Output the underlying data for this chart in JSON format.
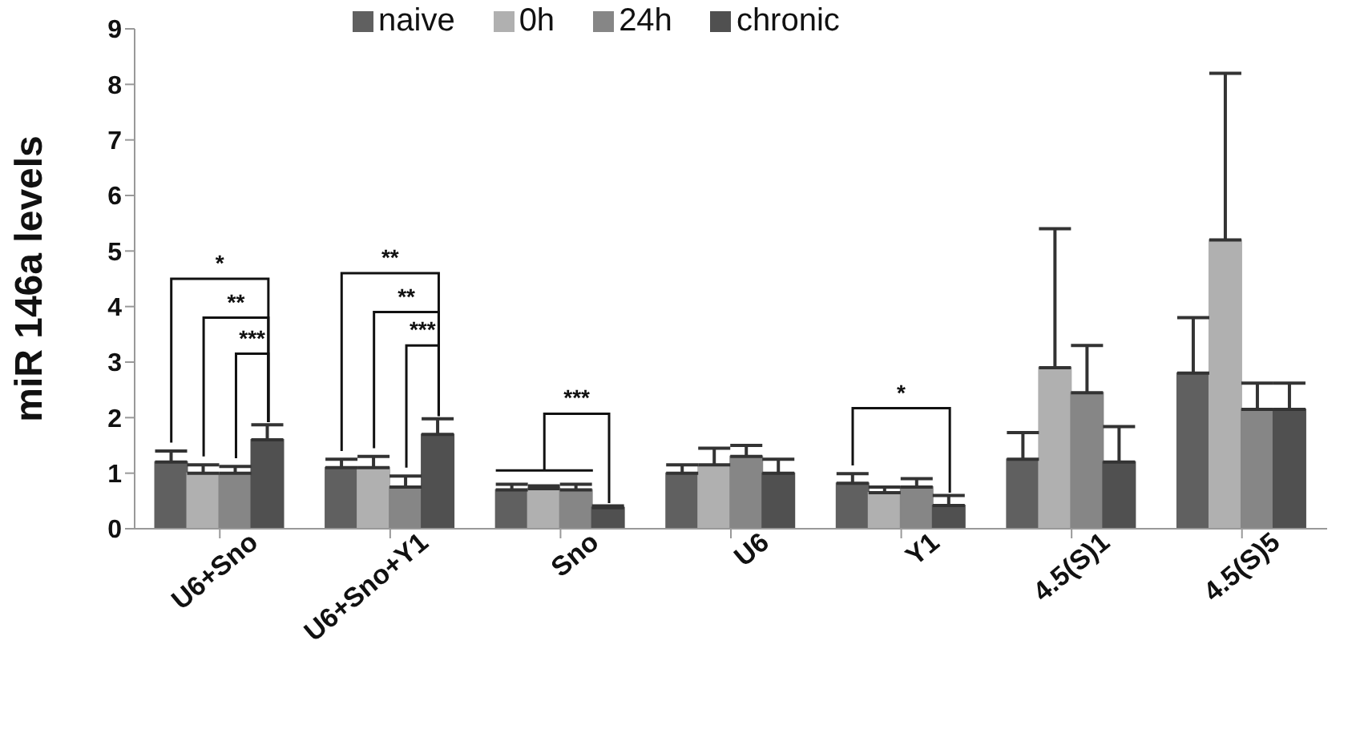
{
  "chart_data": {
    "type": "bar",
    "ylabel": "miR 146a levels",
    "categories": [
      "U6+Sno",
      "U6+Sno+Y1",
      "Sno",
      "U6",
      "Y1",
      "4.5(S)1",
      "4.5(S)5"
    ],
    "series": [
      {
        "name": "naive",
        "color": "#606060",
        "values": [
          1.2,
          1.1,
          0.7,
          1.0,
          0.82,
          1.25,
          2.8
        ],
        "errors": [
          [
            1.2,
            1.4
          ],
          [
            1.1,
            1.25
          ],
          [
            0.7,
            0.8
          ],
          [
            1.0,
            1.15
          ],
          [
            0.82,
            0.99
          ],
          [
            1.25,
            1.73
          ],
          [
            2.8,
            3.8
          ]
        ]
      },
      {
        "name": "0h",
        "color": "#b0b0b0",
        "values": [
          1.0,
          1.1,
          0.72,
          1.15,
          0.65,
          2.9,
          5.2
        ],
        "errors": [
          [
            1.0,
            1.15
          ],
          [
            1.1,
            1.3
          ],
          [
            0.72,
            0.77
          ],
          [
            1.15,
            1.45
          ],
          [
            0.65,
            0.75
          ],
          [
            2.9,
            5.4
          ],
          [
            5.2,
            8.2
          ]
        ]
      },
      {
        "name": "24h",
        "color": "#868686",
        "values": [
          1.0,
          0.75,
          0.7,
          1.3,
          0.75,
          2.45,
          2.15
        ],
        "errors": [
          [
            1.0,
            1.12
          ],
          [
            0.75,
            0.95
          ],
          [
            0.7,
            0.8
          ],
          [
            1.3,
            1.5
          ],
          [
            0.75,
            0.9
          ],
          [
            2.45,
            3.3
          ],
          [
            2.15,
            2.62
          ]
        ]
      },
      {
        "name": "chronic",
        "color": "#505050",
        "values": [
          1.6,
          1.7,
          0.38,
          1.0,
          0.42,
          1.2,
          2.15
        ],
        "errors": [
          [
            1.6,
            1.87
          ],
          [
            1.7,
            1.98
          ],
          [
            0.38,
            0.41
          ],
          [
            1.0,
            1.25
          ],
          [
            0.42,
            0.6
          ],
          [
            1.2,
            1.84
          ],
          [
            2.15,
            2.62
          ]
        ]
      }
    ],
    "ylim": [
      0,
      9
    ],
    "yticks": [
      0,
      1,
      2,
      3,
      4,
      5,
      6,
      7,
      8,
      9
    ],
    "legend": "top",
    "annotations": [
      "*",
      "**",
      "***",
      "**",
      "**",
      "***",
      "***",
      "*"
    ]
  }
}
